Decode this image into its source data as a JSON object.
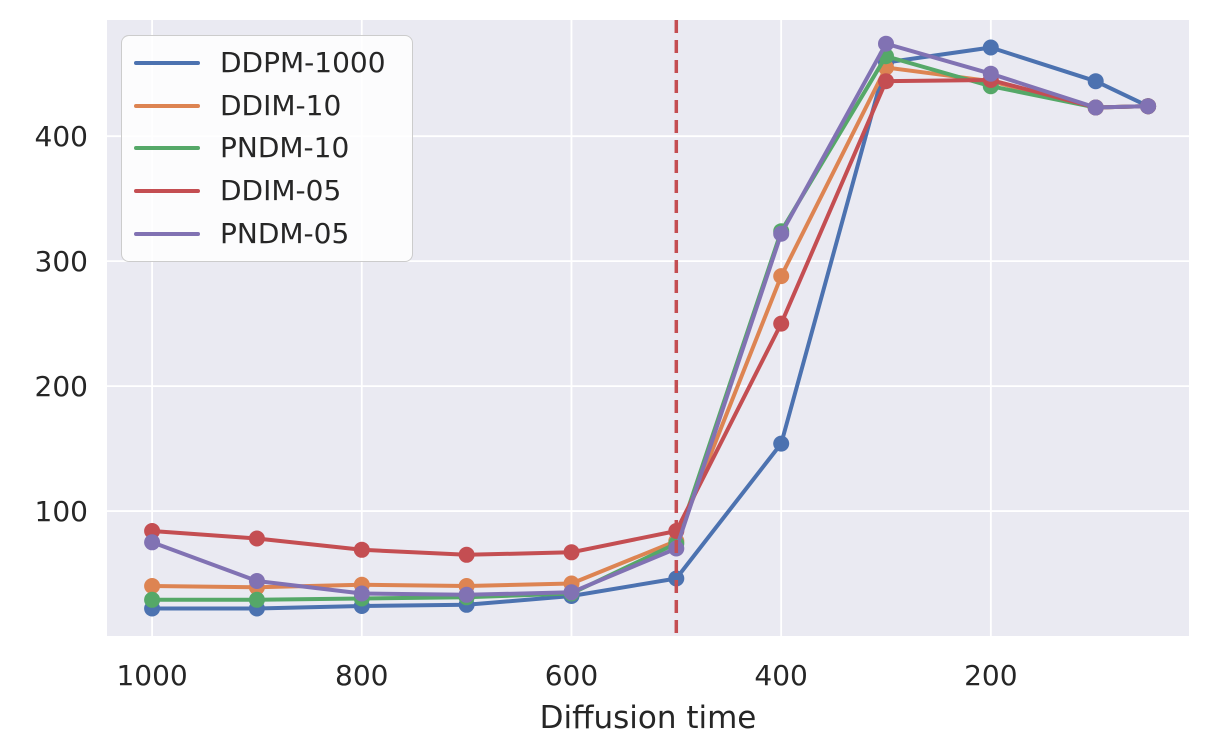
{
  "figure": {
    "background": "#ffffff",
    "plot_background": "#EAEAF2",
    "gridline_color": "#FFFFFF",
    "text_color": "#262626"
  },
  "chart_data": {
    "type": "line",
    "title": "",
    "xlabel": "Diffusion time",
    "ylabel": "",
    "x_axis_reversed": true,
    "grid": true,
    "marker": "circle",
    "x": [
      1000,
      900,
      800,
      700,
      600,
      500,
      400,
      300,
      200,
      100,
      50
    ],
    "series": [
      {
        "name": "DDPM-1000",
        "color": "#4C72B0",
        "values": [
          22,
          22,
          24,
          25,
          32,
          46,
          154,
          459,
          471,
          444,
          424
        ]
      },
      {
        "name": "DDIM-10",
        "color": "#DD8452",
        "values": [
          40,
          39,
          41,
          40,
          42,
          76,
          288,
          455,
          444,
          423,
          424
        ]
      },
      {
        "name": "PNDM-10",
        "color": "#55A868",
        "values": [
          29,
          29,
          30,
          31,
          34,
          74,
          324,
          464,
          440,
          423,
          424
        ]
      },
      {
        "name": "DDIM-05",
        "color": "#C44E52",
        "values": [
          84,
          78,
          69,
          65,
          67,
          84,
          250,
          444,
          445,
          423,
          424
        ]
      },
      {
        "name": "PNDM-05",
        "color": "#8172B3",
        "values": [
          75,
          44,
          34,
          33,
          35,
          70,
          322,
          474,
          450,
          423,
          424
        ]
      }
    ],
    "xticks": [
      1000,
      800,
      600,
      400,
      200
    ],
    "yticks": [
      100,
      200,
      300,
      400
    ],
    "xlim": [
      1043,
      11
    ],
    "ylim": [
      0,
      493
    ],
    "vline": {
      "x": 500,
      "color": "#C44E52",
      "style": "dashed"
    },
    "legend": {
      "position": "upper left",
      "entries": [
        "DDPM-1000",
        "DDIM-10",
        "PNDM-10",
        "DDIM-05",
        "PNDM-05"
      ]
    }
  }
}
